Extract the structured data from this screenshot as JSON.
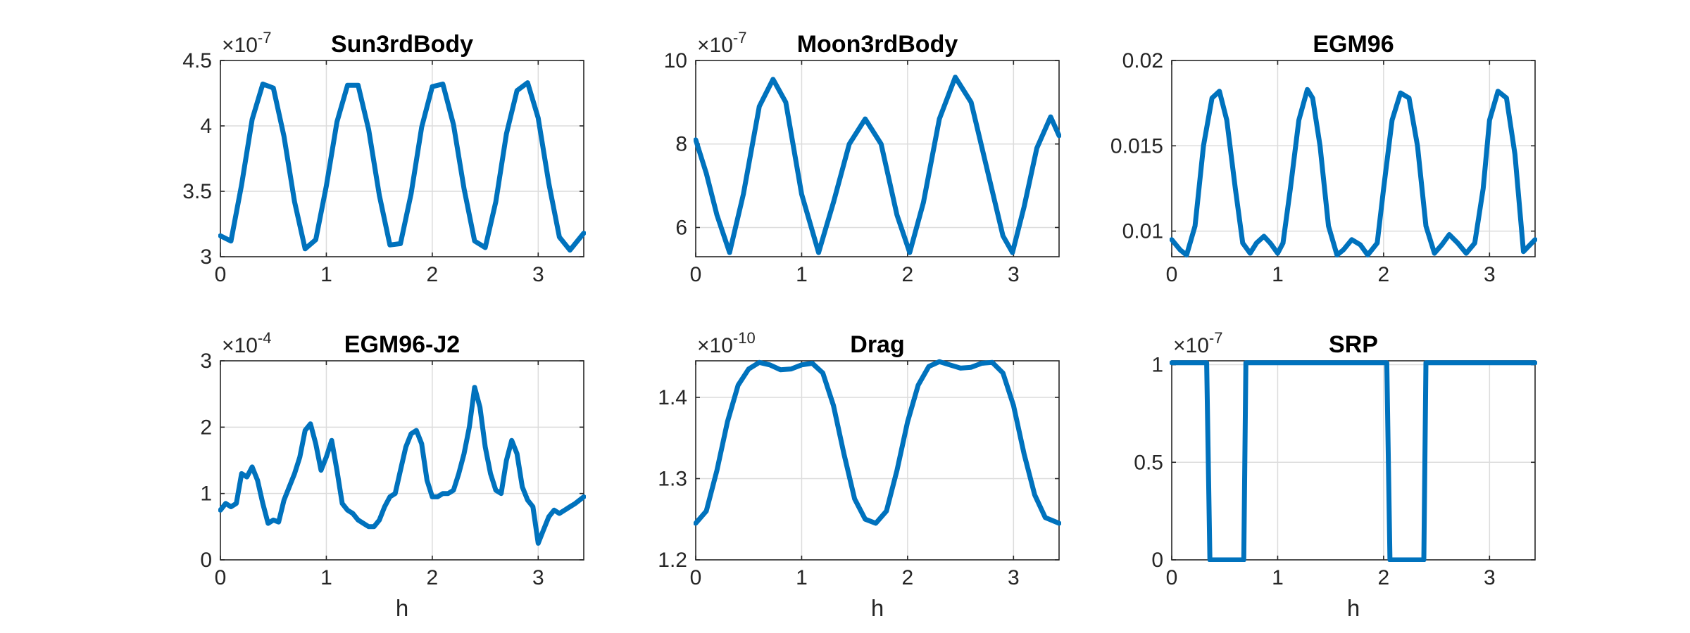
{
  "style": {
    "line_color": "#0072BD",
    "grid": true
  },
  "chart_data": [
    {
      "type": "line",
      "title": "Sun3rdBody",
      "xlabel": "",
      "exponent": "-7",
      "xlim": [
        0,
        3.43
      ],
      "ylim": [
        3,
        4.5
      ],
      "xticks": [
        0,
        1,
        2,
        3
      ],
      "xtick_labels": [
        "0",
        "1",
        "2",
        "3"
      ],
      "yticks": [
        3,
        3.5,
        4,
        4.5
      ],
      "ytick_labels": [
        "3",
        "3.5",
        "4",
        "4.5"
      ],
      "x": [
        0,
        0.1,
        0.2,
        0.3,
        0.4,
        0.5,
        0.6,
        0.7,
        0.8,
        0.9,
        1.0,
        1.1,
        1.2,
        1.3,
        1.4,
        1.5,
        1.6,
        1.7,
        1.8,
        1.9,
        2.0,
        2.1,
        2.2,
        2.3,
        2.4,
        2.5,
        2.6,
        2.7,
        2.8,
        2.9,
        3.0,
        3.1,
        3.2,
        3.3,
        3.43
      ],
      "y": [
        3.16,
        3.12,
        3.55,
        4.05,
        4.32,
        4.29,
        3.92,
        3.42,
        3.06,
        3.13,
        3.54,
        4.03,
        4.31,
        4.31,
        3.97,
        3.47,
        3.09,
        3.1,
        3.48,
        3.99,
        4.3,
        4.32,
        4.01,
        3.52,
        3.12,
        3.07,
        3.42,
        3.94,
        4.27,
        4.33,
        4.06,
        3.56,
        3.15,
        3.05,
        3.18
      ]
    },
    {
      "type": "line",
      "title": "Moon3rdBody",
      "xlabel": "",
      "exponent": "-7",
      "xlim": [
        0,
        3.43
      ],
      "ylim": [
        5.3,
        10
      ],
      "xticks": [
        0,
        1,
        2,
        3
      ],
      "xtick_labels": [
        "0",
        "1",
        "2",
        "3"
      ],
      "yticks": [
        6,
        8,
        10
      ],
      "ytick_labels": [
        "6",
        "8",
        "10"
      ],
      "x": [
        0,
        0.1,
        0.2,
        0.32,
        0.45,
        0.6,
        0.73,
        0.85,
        1.0,
        1.16,
        1.3,
        1.45,
        1.6,
        1.75,
        1.9,
        2.02,
        2.15,
        2.3,
        2.45,
        2.6,
        2.75,
        2.9,
        2.99,
        3.1,
        3.22,
        3.35,
        3.43
      ],
      "y": [
        8.1,
        7.3,
        6.3,
        5.4,
        6.8,
        8.9,
        9.55,
        9.0,
        6.8,
        5.4,
        6.6,
        8.0,
        8.6,
        8.0,
        6.3,
        5.4,
        6.6,
        8.6,
        9.6,
        9.0,
        7.4,
        5.8,
        5.4,
        6.5,
        7.9,
        8.65,
        8.2
      ]
    },
    {
      "type": "line",
      "title": "EGM96",
      "xlabel": "",
      "exponent": "",
      "xlim": [
        0,
        3.43
      ],
      "ylim": [
        0.0085,
        0.02
      ],
      "xticks": [
        0,
        1,
        2,
        3
      ],
      "xtick_labels": [
        "0",
        "1",
        "2",
        "3"
      ],
      "yticks": [
        0.01,
        0.015,
        0.02
      ],
      "ytick_labels": [
        "0.01",
        "0.015",
        "0.02"
      ],
      "x": [
        0,
        0.08,
        0.14,
        0.22,
        0.3,
        0.38,
        0.45,
        0.52,
        0.6,
        0.67,
        0.74,
        0.8,
        0.87,
        0.93,
        1.0,
        1.05,
        1.12,
        1.2,
        1.28,
        1.33,
        1.4,
        1.48,
        1.56,
        1.62,
        1.7,
        1.78,
        1.85,
        1.94,
        2.0,
        2.08,
        2.16,
        2.24,
        2.32,
        2.4,
        2.48,
        2.55,
        2.62,
        2.7,
        2.78,
        2.86,
        2.94,
        3.0,
        3.08,
        3.16,
        3.24,
        3.32,
        3.43
      ],
      "y": [
        0.0095,
        0.0089,
        0.0086,
        0.0103,
        0.015,
        0.0178,
        0.0182,
        0.0165,
        0.0125,
        0.0093,
        0.0087,
        0.0093,
        0.0097,
        0.0093,
        0.0087,
        0.0093,
        0.0125,
        0.0165,
        0.0183,
        0.0178,
        0.015,
        0.0103,
        0.0086,
        0.0089,
        0.0095,
        0.0092,
        0.0086,
        0.0093,
        0.0125,
        0.0165,
        0.0181,
        0.0178,
        0.015,
        0.0103,
        0.0087,
        0.0092,
        0.0098,
        0.0093,
        0.0087,
        0.0093,
        0.0125,
        0.0165,
        0.0182,
        0.0178,
        0.0145,
        0.0088,
        0.0095
      ]
    },
    {
      "type": "line",
      "title": "EGM96-J2",
      "xlabel": "h",
      "exponent": "-4",
      "xlim": [
        0,
        3.43
      ],
      "ylim": [
        0,
        3
      ],
      "xticks": [
        0,
        1,
        2,
        3
      ],
      "xtick_labels": [
        "0",
        "1",
        "2",
        "3"
      ],
      "yticks": [
        0,
        1,
        2,
        3
      ],
      "ytick_labels": [
        "0",
        "1",
        "2",
        "3"
      ],
      "x": [
        0,
        0.05,
        0.1,
        0.15,
        0.2,
        0.25,
        0.3,
        0.35,
        0.4,
        0.45,
        0.5,
        0.55,
        0.6,
        0.65,
        0.7,
        0.75,
        0.8,
        0.85,
        0.9,
        0.95,
        1.0,
        1.05,
        1.1,
        1.15,
        1.2,
        1.25,
        1.3,
        1.35,
        1.4,
        1.45,
        1.5,
        1.55,
        1.6,
        1.65,
        1.7,
        1.75,
        1.8,
        1.85,
        1.9,
        1.95,
        2.0,
        2.05,
        2.1,
        2.15,
        2.2,
        2.25,
        2.3,
        2.35,
        2.4,
        2.45,
        2.5,
        2.55,
        2.6,
        2.65,
        2.7,
        2.75,
        2.8,
        2.85,
        2.9,
        2.95,
        3.0,
        3.05,
        3.1,
        3.15,
        3.2,
        3.25,
        3.3,
        3.35,
        3.43
      ],
      "y": [
        0.75,
        0.85,
        0.8,
        0.85,
        1.3,
        1.25,
        1.4,
        1.2,
        0.85,
        0.55,
        0.6,
        0.57,
        0.9,
        1.1,
        1.3,
        1.55,
        1.95,
        2.05,
        1.75,
        1.35,
        1.55,
        1.8,
        1.35,
        0.85,
        0.75,
        0.7,
        0.6,
        0.55,
        0.5,
        0.5,
        0.6,
        0.8,
        0.95,
        1.0,
        1.35,
        1.7,
        1.9,
        1.95,
        1.75,
        1.2,
        0.95,
        0.95,
        1.0,
        1.0,
        1.05,
        1.3,
        1.6,
        2.0,
        2.6,
        2.3,
        1.7,
        1.3,
        1.05,
        1.0,
        1.5,
        1.8,
        1.6,
        1.1,
        0.9,
        0.8,
        0.25,
        0.45,
        0.65,
        0.75,
        0.7,
        0.75,
        0.8,
        0.85,
        0.95
      ]
    },
    {
      "type": "line",
      "title": "Drag",
      "xlabel": "h",
      "exponent": "-10",
      "xlim": [
        0,
        3.43
      ],
      "ylim": [
        1.2,
        1.445
      ],
      "xticks": [
        0,
        1,
        2,
        3
      ],
      "xtick_labels": [
        "0",
        "1",
        "2",
        "3"
      ],
      "yticks": [
        1.2,
        1.3,
        1.4
      ],
      "ytick_labels": [
        "1.2",
        "1.3",
        "1.4"
      ],
      "x": [
        0,
        0.1,
        0.2,
        0.3,
        0.4,
        0.5,
        0.6,
        0.7,
        0.8,
        0.9,
        1.0,
        1.1,
        1.2,
        1.3,
        1.4,
        1.5,
        1.6,
        1.7,
        1.8,
        1.9,
        2.0,
        2.1,
        2.2,
        2.3,
        2.4,
        2.5,
        2.6,
        2.7,
        2.8,
        2.9,
        3.0,
        3.1,
        3.2,
        3.3,
        3.43
      ],
      "y": [
        1.245,
        1.26,
        1.31,
        1.37,
        1.415,
        1.435,
        1.443,
        1.44,
        1.434,
        1.435,
        1.44,
        1.442,
        1.43,
        1.39,
        1.33,
        1.275,
        1.25,
        1.245,
        1.26,
        1.31,
        1.37,
        1.415,
        1.438,
        1.444,
        1.44,
        1.436,
        1.437,
        1.442,
        1.443,
        1.43,
        1.39,
        1.33,
        1.28,
        1.252,
        1.245
      ]
    },
    {
      "type": "line",
      "title": "SRP",
      "xlabel": "h",
      "exponent": "-7",
      "xlim": [
        0,
        3.43
      ],
      "ylim": [
        0,
        1.02
      ],
      "xticks": [
        0,
        1,
        2,
        3
      ],
      "xtick_labels": [
        "0",
        "1",
        "2",
        "3"
      ],
      "yticks": [
        0,
        0.5,
        1
      ],
      "ytick_labels": [
        "0",
        "0.5",
        "1"
      ],
      "x": [
        0,
        0.33,
        0.36,
        0.68,
        0.7,
        2.03,
        2.06,
        2.38,
        2.4,
        3.43
      ],
      "y": [
        1.01,
        1.01,
        0,
        0,
        1.01,
        1.01,
        0,
        0,
        1.01,
        1.01
      ]
    }
  ]
}
